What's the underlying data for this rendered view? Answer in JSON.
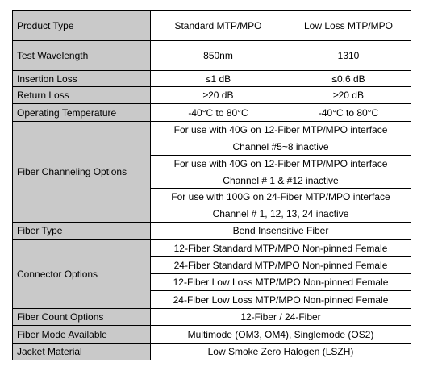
{
  "table": {
    "header": {
      "label": "Product Type",
      "standard": "Standard MTP/MPO",
      "low_loss": "Low Loss MTP/MPO"
    },
    "test_wavelength": {
      "label": "Test Wavelength",
      "standard": "850nm",
      "low_loss": "1310"
    },
    "insertion_loss": {
      "label": "Insertion Loss",
      "standard": "≤1 dB",
      "low_loss": "≤0.6 dB"
    },
    "return_loss": {
      "label": "Return Loss",
      "standard": "≥20 dB",
      "low_loss": "≥20 dB"
    },
    "operating_temperature": {
      "label": "Operating Temperature",
      "standard": "-40°C to 80°C",
      "low_loss": "-40°C to 80°C"
    },
    "fiber_channeling": {
      "label": "Fiber Channeling Options",
      "options": [
        {
          "line1": "For use with 40G on 12-Fiber MTP/MPO interface",
          "line2": "Channel #5~8 inactive"
        },
        {
          "line1": "For use with 40G on 12-Fiber MTP/MPO interface",
          "line2": "Channel # 1 & #12 inactive"
        },
        {
          "line1": "For use with 100G on 24-Fiber MTP/MPO interface",
          "line2": "Channel # 1, 12, 13, 24 inactive"
        }
      ]
    },
    "fiber_type": {
      "label": "Fiber Type",
      "value": "Bend Insensitive Fiber"
    },
    "connector_options": {
      "label": "Connector Options",
      "options": [
        "12-Fiber Standard MTP/MPO Non-pinned Female",
        "24-Fiber Standard MTP/MPO Non-pinned Female",
        "12-Fiber Low Loss MTP/MPO Non-pinned Female",
        "24-Fiber Low Loss MTP/MPO Non-pinned Female"
      ]
    },
    "fiber_count": {
      "label": "Fiber Count Options",
      "value": "12-Fiber / 24-Fiber"
    },
    "fiber_mode": {
      "label": "Fiber Mode Available",
      "value": "Multimode (OM3, OM4), Singlemode (OS2)"
    },
    "jacket_material": {
      "label": "Jacket Material",
      "value": "Low Smoke Zero Halogen (LSZH)"
    }
  }
}
